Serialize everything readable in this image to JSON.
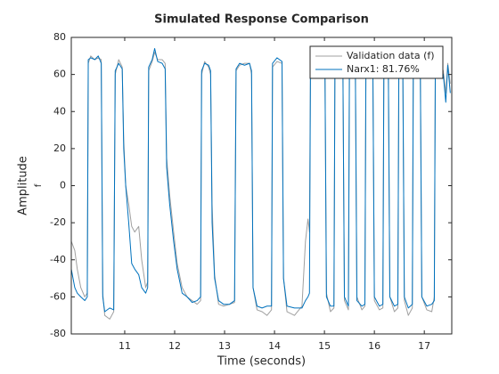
{
  "chart_data": {
    "type": "line",
    "title": "Simulated Response Comparison",
    "xlabel": "Time (seconds)",
    "ylabel": "Amplitude",
    "ylabel_sub": "f",
    "legend": "northeast",
    "grid": false,
    "xlim": [
      9.93,
      17.55
    ],
    "ylim": [
      -80,
      80
    ],
    "xticks": [
      11,
      12,
      13,
      14,
      15,
      16,
      17
    ],
    "yticks": [
      -80,
      -60,
      -40,
      -20,
      0,
      20,
      40,
      60,
      80
    ],
    "x": [
      9.93,
      10.0,
      10.05,
      10.12,
      10.2,
      10.25,
      10.27,
      10.32,
      10.4,
      10.47,
      10.53,
      10.56,
      10.6,
      10.7,
      10.78,
      10.81,
      10.88,
      10.95,
      10.98,
      11.02,
      11.08,
      11.14,
      11.2,
      11.28,
      11.34,
      11.42,
      11.46,
      11.48,
      11.55,
      11.6,
      11.66,
      11.75,
      11.81,
      11.84,
      11.9,
      11.98,
      12.05,
      12.15,
      12.25,
      12.35,
      12.45,
      12.52,
      12.54,
      12.6,
      12.68,
      12.72,
      12.75,
      12.8,
      12.88,
      12.98,
      13.1,
      13.2,
      13.23,
      13.3,
      13.4,
      13.5,
      13.54,
      13.57,
      13.65,
      13.75,
      13.85,
      13.94,
      13.96,
      14.05,
      14.15,
      14.18,
      14.25,
      14.4,
      14.55,
      14.62,
      14.67,
      14.7,
      14.72,
      14.8,
      14.92,
      15.01,
      15.04,
      15.12,
      15.19,
      15.21,
      15.3,
      15.37,
      15.4,
      15.48,
      15.5,
      15.58,
      15.62,
      15.65,
      15.75,
      15.81,
      15.83,
      15.9,
      15.97,
      16.0,
      16.1,
      16.17,
      16.19,
      16.28,
      16.31,
      16.4,
      16.47,
      16.49,
      16.57,
      16.6,
      16.68,
      16.76,
      16.78,
      16.85,
      16.92,
      16.95,
      17.05,
      17.15,
      17.2,
      17.22,
      17.3,
      17.38,
      17.43,
      17.47,
      17.52
    ],
    "series": [
      {
        "name": "Validation data (f)",
        "color": "#a0a0a0",
        "values": [
          -30,
          -35,
          -45,
          -55,
          -60,
          -58,
          66,
          70,
          68,
          69,
          68,
          -58,
          -70,
          -72,
          -68,
          60,
          68,
          64,
          25,
          0,
          -10,
          -22,
          -25,
          -22,
          -40,
          -55,
          -52,
          62,
          67,
          72,
          68,
          68,
          66,
          15,
          -5,
          -25,
          -42,
          -55,
          -60,
          -62,
          -64,
          -62,
          60,
          67,
          64,
          60,
          -10,
          -48,
          -64,
          -65,
          -64,
          -63,
          62,
          65,
          66,
          66,
          60,
          -55,
          -67,
          -68,
          -70,
          -67,
          64,
          67,
          66,
          -50,
          -68,
          -70,
          -65,
          -30,
          -18,
          -25,
          62,
          65,
          66,
          64,
          -58,
          -68,
          -66,
          60,
          65,
          63,
          -62,
          -67,
          60,
          65,
          62,
          -60,
          -67,
          -65,
          60,
          66,
          64,
          -62,
          -67,
          -66,
          60,
          63,
          -60,
          -68,
          -66,
          62,
          63,
          -62,
          -70,
          -66,
          65,
          66,
          65,
          -60,
          -67,
          -68,
          -60,
          60,
          68,
          62,
          50,
          66,
          55
        ]
      },
      {
        "name": "Narx1: 81.76%",
        "color": "#0072bd",
        "values": [
          -45,
          -55,
          -58,
          -60,
          -62,
          -60,
          68,
          69,
          68,
          70,
          66,
          -60,
          -68,
          -66,
          -67,
          62,
          66,
          63,
          20,
          0,
          -20,
          -42,
          -45,
          -48,
          -55,
          -58,
          -55,
          64,
          68,
          74,
          67,
          66,
          63,
          10,
          -10,
          -30,
          -45,
          -58,
          -60,
          -63,
          -62,
          -60,
          62,
          66,
          65,
          62,
          -20,
          -50,
          -62,
          -64,
          -64,
          -62,
          63,
          66,
          65,
          66,
          62,
          -55,
          -65,
          -66,
          -65,
          -65,
          66,
          69,
          67,
          -50,
          -65,
          -66,
          -66,
          -62,
          -60,
          -58,
          64,
          66,
          65,
          64,
          -60,
          -65,
          -65,
          63,
          65,
          62,
          -60,
          -65,
          62,
          64,
          60,
          -62,
          -65,
          -64,
          63,
          65,
          62,
          -60,
          -65,
          -64,
          63,
          62,
          -60,
          -65,
          -64,
          64,
          62,
          -60,
          -66,
          -64,
          68,
          70,
          64,
          -60,
          -65,
          -64,
          -62,
          62,
          66,
          60,
          45,
          65,
          50
        ]
      }
    ]
  }
}
